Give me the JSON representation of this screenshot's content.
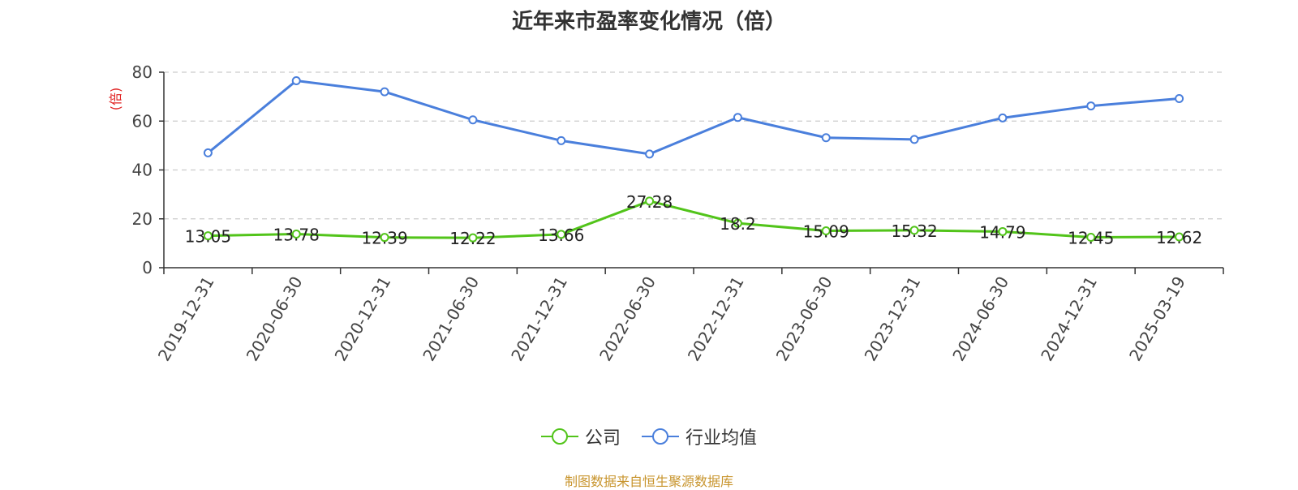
{
  "chart_data": {
    "type": "line",
    "title": "近年来市盈率变化情况（倍）",
    "ylabel": "(倍)",
    "xlabel": "",
    "ylim": [
      0,
      80
    ],
    "yticks": [
      0,
      20,
      40,
      60,
      80
    ],
    "grid": true,
    "legend_position": "bottom-center",
    "categories": [
      "2019-12-31",
      "2020-06-30",
      "2020-12-31",
      "2021-06-30",
      "2021-12-31",
      "2022-06-30",
      "2022-12-31",
      "2023-06-30",
      "2023-12-31",
      "2024-06-30",
      "2024-12-31",
      "2025-03-19"
    ],
    "series": [
      {
        "name": "公司",
        "color": "#52c41a",
        "values": [
          13.05,
          13.78,
          12.39,
          12.22,
          13.66,
          27.28,
          18.2,
          15.09,
          15.32,
          14.79,
          12.45,
          12.62
        ],
        "labels": [
          "13.05",
          "13.78",
          "12.39",
          "12.22",
          "13.66",
          "27.28",
          "18.2",
          "15.09",
          "15.32",
          "14.79",
          "12.45",
          "12.62"
        ]
      },
      {
        "name": "行业均值",
        "color": "#4a7fdc",
        "values": [
          47,
          76.5,
          72,
          60.5,
          52,
          46.5,
          61.5,
          53.2,
          52.5,
          61.3,
          66.2,
          69.2
        ]
      }
    ]
  },
  "footer": {
    "source": "制图数据来自恒生聚源数据库"
  }
}
